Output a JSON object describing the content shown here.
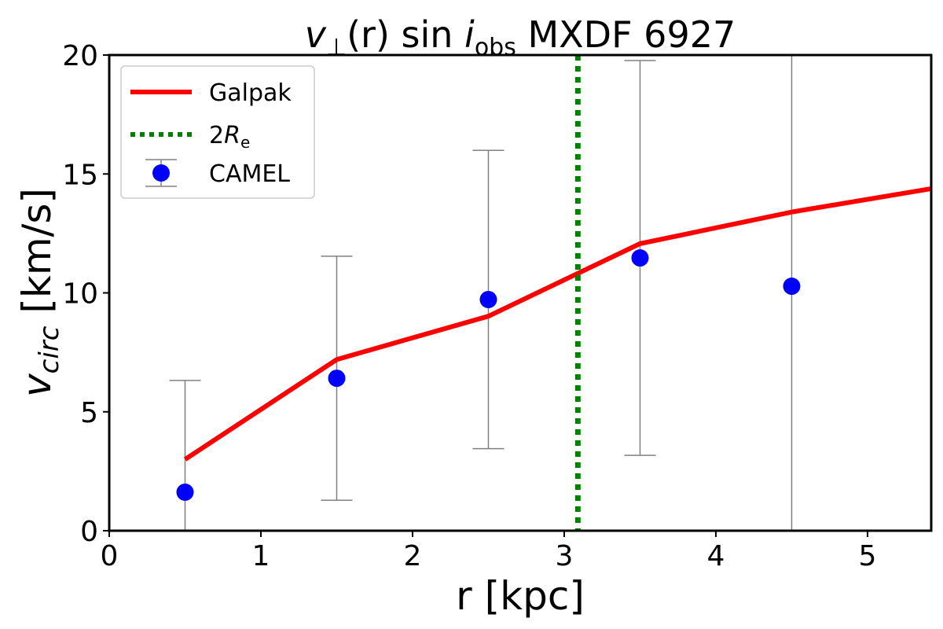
{
  "chart_data": {
    "type": "line",
    "title": {
      "v": "v",
      "sub_perp": "⊥",
      "mid": "(r) sin ",
      "i": "i",
      "sub_obs": "obs",
      "rest": " MXDF 6927"
    },
    "xlabel": "r [kpc]",
    "ylabel": {
      "v": "v",
      "sub": "circ",
      "rest": " [km/s]"
    },
    "xlim": [
      0,
      5.42
    ],
    "ylim": [
      0,
      20
    ],
    "xticks": [
      0,
      1,
      2,
      3,
      4,
      5
    ],
    "yticks": [
      0,
      5,
      10,
      15,
      20
    ],
    "grid": false,
    "legend_position": "top-left",
    "series": [
      {
        "name": "Galpak",
        "kind": "line",
        "color": "#ff0000",
        "x": [
          0.5,
          1.5,
          2.5,
          3.5,
          4.5,
          5.42
        ],
        "y": [
          3.0,
          7.2,
          9.02,
          12.07,
          13.4,
          14.38
        ]
      },
      {
        "name": "2Rₑ",
        "legend_main": "2",
        "legend_R": "R",
        "legend_sub": "e",
        "kind": "vline",
        "color": "#008000",
        "x": 3.09
      },
      {
        "name": "CAMEL",
        "kind": "errorbar",
        "color": "#0000ff",
        "errcolor": "#808080",
        "x": [
          0.5,
          1.5,
          2.5,
          3.5,
          4.5
        ],
        "y": [
          1.62,
          6.41,
          9.72,
          11.47,
          10.28
        ],
        "yerr": [
          4.7,
          5.13,
          6.27,
          8.3,
          11.0
        ]
      }
    ]
  }
}
